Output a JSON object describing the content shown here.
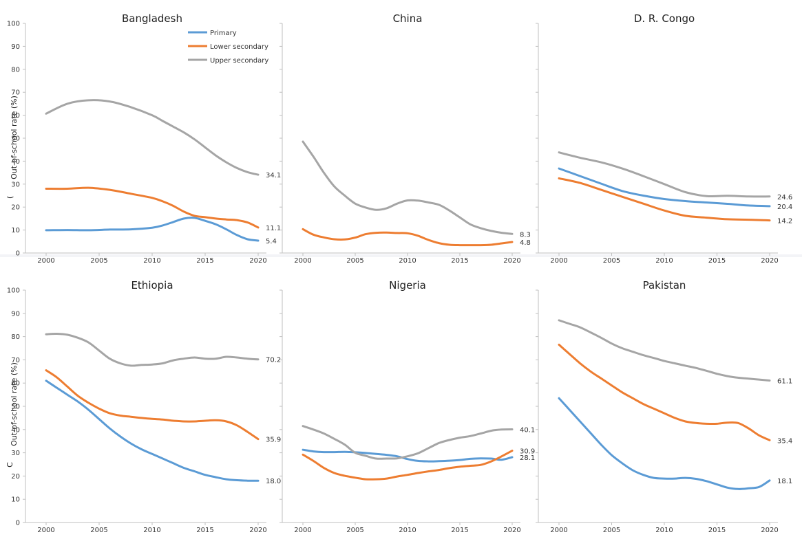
{
  "colors": {
    "background": "#ffffff",
    "primary": "#5b9bd5",
    "lower_secondary": "#ed7d31",
    "upper_secondary": "#a5a5a5"
  },
  "legend": [
    "Primary",
    "Lower secondary",
    "Upper secondary"
  ],
  "ylabel": "Out-of-school rate (%)",
  "ylabel_stub": "(",
  "ylabel_stub_bottom": "C",
  "chart_data": [
    {
      "type": "line",
      "title": "Bangladesh",
      "ylim": [
        0,
        100
      ],
      "xlim": [
        2000,
        2020
      ],
      "x_ticks": [
        "2000",
        "2005",
        "2010",
        "2015",
        "2020"
      ],
      "y_ticks": [
        "0",
        "10",
        "20",
        "30",
        "40",
        "50",
        "60",
        "70",
        "80",
        "90",
        "100"
      ],
      "legend": "top-right",
      "x": [
        2000,
        2002,
        2004,
        2006,
        2008,
        2010,
        2011,
        2012,
        2013,
        2014,
        2015,
        2016,
        2017,
        2018,
        2019,
        2020
      ],
      "series": [
        {
          "name": "Primary",
          "values": [
            9.9,
            10.0,
            9.9,
            10.2,
            10.3,
            11.0,
            12.0,
            13.5,
            15.0,
            15.3,
            14.0,
            12.5,
            10.3,
            7.8,
            6.0,
            5.4
          ],
          "end_label": "5.4"
        },
        {
          "name": "Lower secondary",
          "values": [
            28.0,
            28.0,
            28.4,
            27.5,
            25.8,
            24.0,
            22.5,
            20.5,
            18.0,
            16.2,
            15.6,
            15.0,
            14.6,
            14.3,
            13.3,
            11.1
          ],
          "end_label": "11.1"
        },
        {
          "name": "Upper secondary",
          "values": [
            60.7,
            65.0,
            66.5,
            66.0,
            63.5,
            60.0,
            57.5,
            55.0,
            52.5,
            49.5,
            46.0,
            42.5,
            39.5,
            37.0,
            35.2,
            34.1
          ],
          "end_label": "34.1"
        }
      ]
    },
    {
      "type": "line",
      "title": "China",
      "ylim": [
        0,
        100
      ],
      "xlim": [
        2000,
        2020
      ],
      "x_ticks": [
        "2000",
        "2005",
        "2010",
        "2015",
        "2020"
      ],
      "x": [
        2000,
        2001,
        2002,
        2003,
        2004,
        2005,
        2006,
        2007,
        2008,
        2009,
        2010,
        2011,
        2012,
        2013,
        2014,
        2015,
        2016,
        2017,
        2018,
        2019,
        2020
      ],
      "series": [
        {
          "name": "Primary",
          "values": [
            null,
            null,
            null,
            null,
            null,
            null,
            null,
            null,
            null,
            null,
            null,
            null,
            null,
            null,
            null,
            null,
            null,
            null,
            null,
            null,
            null
          ],
          "end_label": ""
        },
        {
          "name": "Lower secondary",
          "values": [
            10.4,
            8.0,
            6.8,
            6.0,
            5.9,
            6.7,
            8.2,
            8.8,
            8.9,
            8.7,
            8.6,
            7.5,
            5.7,
            4.3,
            3.6,
            3.4,
            3.4,
            3.4,
            3.6,
            4.2,
            4.8
          ],
          "end_label": "4.8"
        },
        {
          "name": "Upper secondary",
          "values": [
            48.5,
            42.0,
            35.0,
            29.0,
            25.0,
            21.5,
            19.8,
            18.8,
            19.5,
            21.5,
            22.9,
            22.8,
            22.0,
            21.0,
            18.5,
            15.5,
            12.5,
            10.8,
            9.6,
            8.8,
            8.3
          ],
          "end_label": "8.3"
        }
      ]
    },
    {
      "type": "line",
      "title": "D. R. Congo",
      "ylim": [
        0,
        100
      ],
      "xlim": [
        2000,
        2020
      ],
      "x_ticks": [
        "2000",
        "2005",
        "2010",
        "2015",
        "2020"
      ],
      "x": [
        2000,
        2002,
        2004,
        2006,
        2008,
        2010,
        2012,
        2014,
        2016,
        2018,
        2020
      ],
      "series": [
        {
          "name": "Primary",
          "values": [
            36.8,
            33.5,
            30.2,
            27.0,
            25.0,
            23.5,
            22.6,
            22.0,
            21.4,
            20.7,
            20.4
          ],
          "end_label": "20.4"
        },
        {
          "name": "Lower secondary",
          "values": [
            32.5,
            30.5,
            27.5,
            24.5,
            21.5,
            18.5,
            16.2,
            15.4,
            14.7,
            14.5,
            14.2
          ],
          "end_label": "14.2"
        },
        {
          "name": "Upper secondary",
          "values": [
            43.8,
            41.5,
            39.5,
            36.8,
            33.5,
            30.0,
            26.5,
            24.8,
            24.9,
            24.6,
            24.6
          ],
          "end_label": "24.6"
        }
      ]
    },
    {
      "type": "line",
      "title": "Ethiopia",
      "ylim": [
        0,
        100
      ],
      "xlim": [
        2000,
        2020
      ],
      "x_ticks": [
        "2000",
        "2005",
        "2010",
        "2015",
        "2020"
      ],
      "y_ticks": [
        "0",
        "10",
        "20",
        "30",
        "40",
        "50",
        "60",
        "70",
        "80",
        "90",
        "100"
      ],
      "x": [
        2000,
        2001,
        2002,
        2003,
        2004,
        2005,
        2006,
        2007,
        2008,
        2009,
        2010,
        2011,
        2012,
        2013,
        2014,
        2015,
        2016,
        2017,
        2018,
        2019,
        2020
      ],
      "series": [
        {
          "name": "Primary",
          "values": [
            61.0,
            58.0,
            55.0,
            52.0,
            48.5,
            44.5,
            40.5,
            37.0,
            34.0,
            31.5,
            29.5,
            27.5,
            25.5,
            23.5,
            22.0,
            20.5,
            19.5,
            18.6,
            18.2,
            18.0,
            18.0
          ],
          "end_label": "18.0"
        },
        {
          "name": "Lower secondary",
          "values": [
            65.5,
            62.5,
            58.5,
            54.5,
            51.5,
            49.0,
            47.0,
            46.0,
            45.5,
            45.0,
            44.6,
            44.3,
            43.8,
            43.5,
            43.5,
            43.8,
            44.0,
            43.5,
            41.8,
            39.0,
            35.9
          ],
          "end_label": "35.9"
        },
        {
          "name": "Upper secondary",
          "values": [
            81.0,
            81.2,
            80.8,
            79.5,
            77.5,
            74.0,
            70.5,
            68.5,
            67.5,
            67.8,
            68.0,
            68.5,
            69.8,
            70.5,
            71.0,
            70.5,
            70.5,
            71.3,
            71.0,
            70.5,
            70.2
          ],
          "end_label": "70.2"
        }
      ]
    },
    {
      "type": "line",
      "title": "Nigeria",
      "ylim": [
        0,
        100
      ],
      "xlim": [
        2000,
        2020
      ],
      "x_ticks": [
        "2000",
        "2005",
        "2010",
        "2015",
        "2020"
      ],
      "x": [
        2000,
        2001,
        2002,
        2003,
        2004,
        2005,
        2006,
        2007,
        2008,
        2009,
        2010,
        2011,
        2012,
        2013,
        2014,
        2015,
        2016,
        2017,
        2018,
        2019,
        2020
      ],
      "series": [
        {
          "name": "Primary",
          "values": [
            31.3,
            30.6,
            30.3,
            30.3,
            30.4,
            30.2,
            29.9,
            29.5,
            29.1,
            28.5,
            27.3,
            26.5,
            26.3,
            26.4,
            26.6,
            26.9,
            27.4,
            27.6,
            27.5,
            27.0,
            28.1
          ],
          "end_label": "28.1"
        },
        {
          "name": "Lower secondary",
          "values": [
            29.2,
            26.5,
            23.5,
            21.3,
            20.1,
            19.3,
            18.6,
            18.6,
            18.9,
            19.8,
            20.5,
            21.3,
            22.0,
            22.6,
            23.4,
            24.0,
            24.4,
            24.8,
            26.3,
            28.5,
            30.9
          ],
          "end_label": "30.9"
        },
        {
          "name": "Upper secondary",
          "values": [
            41.5,
            40.0,
            38.3,
            36.0,
            33.5,
            30.0,
            28.7,
            27.5,
            27.5,
            27.6,
            28.5,
            29.8,
            32.0,
            34.2,
            35.5,
            36.5,
            37.2,
            38.3,
            39.5,
            40.0,
            40.1
          ],
          "end_label": "40.1"
        }
      ]
    },
    {
      "type": "line",
      "title": "Pakistan",
      "ylim": [
        0,
        100
      ],
      "xlim": [
        2000,
        2020
      ],
      "x_ticks": [
        "2000",
        "2005",
        "2010",
        "2015",
        "2020"
      ],
      "x": [
        2000,
        2001,
        2002,
        2003,
        2004,
        2005,
        2006,
        2007,
        2008,
        2009,
        2010,
        2011,
        2012,
        2013,
        2014,
        2015,
        2016,
        2017,
        2018,
        2019,
        2020
      ],
      "series": [
        {
          "name": "Primary",
          "values": [
            53.5,
            48.5,
            43.5,
            38.5,
            33.5,
            29.0,
            25.5,
            22.5,
            20.5,
            19.2,
            18.9,
            18.9,
            19.2,
            18.8,
            17.8,
            16.4,
            15.0,
            14.4,
            14.7,
            15.3,
            18.1
          ],
          "end_label": "18.1"
        },
        {
          "name": "Lower secondary",
          "values": [
            76.5,
            72.5,
            68.5,
            65.0,
            62.0,
            59.0,
            56.0,
            53.5,
            51.0,
            49.0,
            47.0,
            45.0,
            43.5,
            42.8,
            42.5,
            42.5,
            43.0,
            42.8,
            40.5,
            37.5,
            35.4
          ],
          "end_label": "35.4"
        },
        {
          "name": "Upper secondary",
          "values": [
            87.0,
            85.5,
            84.0,
            81.8,
            79.5,
            77.0,
            75.0,
            73.5,
            72.0,
            70.8,
            69.5,
            68.5,
            67.5,
            66.5,
            65.3,
            64.0,
            63.0,
            62.3,
            61.9,
            61.5,
            61.1
          ],
          "end_label": "61.1"
        }
      ]
    }
  ]
}
